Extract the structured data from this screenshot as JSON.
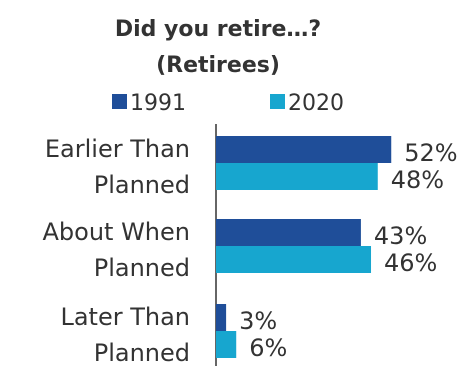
{
  "chart_data": {
    "type": "bar",
    "orientation": "horizontal",
    "title_lines": [
      "Did you retire…?",
      "(Retirees)"
    ],
    "legend": {
      "placement": "top",
      "entries": [
        "1991",
        "2020"
      ]
    },
    "categories": [
      [
        "Earlier Than",
        "Planned"
      ],
      [
        "About When",
        "Planned"
      ],
      [
        "Later Than",
        "Planned"
      ]
    ],
    "series": [
      {
        "name": "1991",
        "values": [
          52,
          43,
          3
        ],
        "labels": [
          "52%",
          "43%",
          "3%"
        ],
        "color": "#1f4e99"
      },
      {
        "name": "2020",
        "values": [
          48,
          46,
          6
        ],
        "labels": [
          "48%",
          "46%",
          "6%"
        ],
        "color": "#17a6cf"
      }
    ],
    "xlim": [
      0,
      100
    ],
    "value_unit": "%",
    "grid": false,
    "axis_line": true
  }
}
